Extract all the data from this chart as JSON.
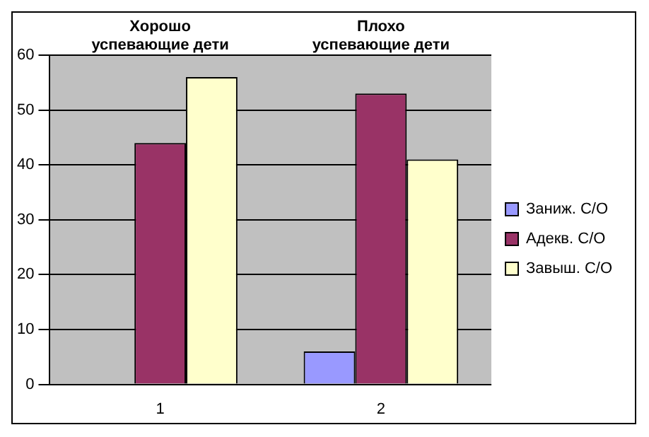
{
  "chart_data": {
    "type": "bar",
    "categories": [
      "1",
      "2"
    ],
    "series": [
      {
        "name": "Заниж. С/О",
        "color": "#9999ff",
        "values": [
          0,
          6
        ]
      },
      {
        "name": "Адекв. С/О",
        "color": "#993366",
        "values": [
          44,
          53
        ]
      },
      {
        "name": "Завыш. С/О",
        "color": "#ffffcc",
        "values": [
          56,
          41
        ]
      }
    ],
    "ylim": [
      0,
      60
    ],
    "yticks": [
      0,
      10,
      20,
      30,
      40,
      50,
      60
    ],
    "grid": "y",
    "legend": "right",
    "annotations": [
      "Хорошо\nуспевающие дети",
      "Плохо\nуспевающие дети"
    ]
  }
}
